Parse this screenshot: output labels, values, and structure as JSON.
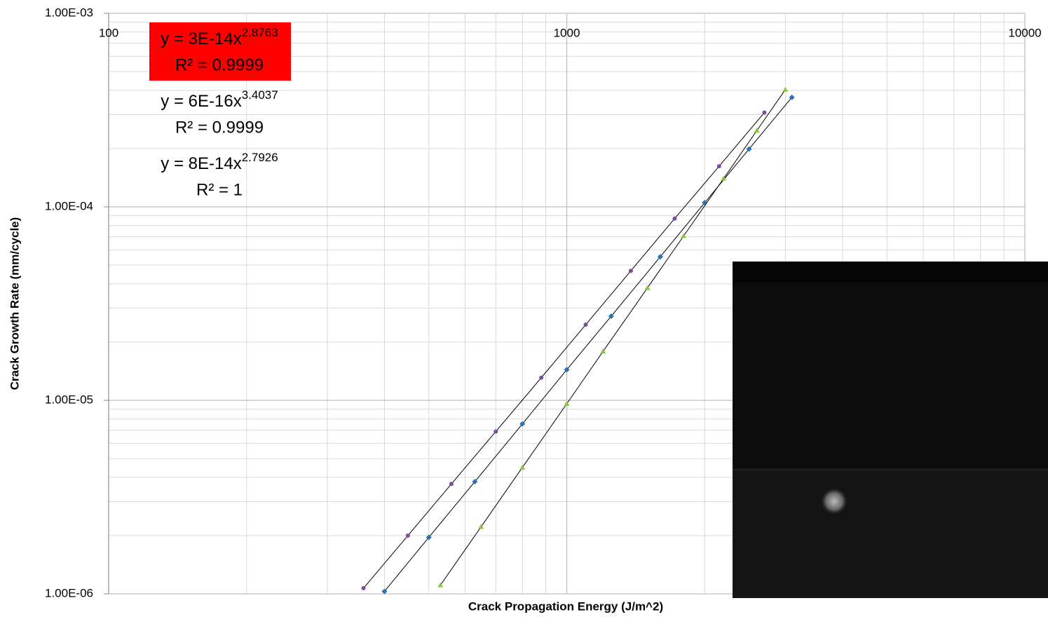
{
  "chart_data": {
    "type": "scatter",
    "xlabel": "Crack Propagation Energy (J/m^2)",
    "ylabel": "Crack Growth Rate (mm/cycle)",
    "xscale": "log",
    "yscale": "log",
    "xlim": [
      100,
      10000
    ],
    "ylim": [
      1e-06,
      0.001
    ],
    "xticks": [
      100,
      1000,
      10000
    ],
    "yticks": [
      {
        "value": 1e-06,
        "label": "1.00E-06"
      },
      {
        "value": 1e-05,
        "label": "1.00E-05"
      },
      {
        "value": 0.0001,
        "label": "1.00E-04"
      },
      {
        "value": 0.001,
        "label": "1.00E-03"
      }
    ],
    "grid": true,
    "x_minor_grid": [
      200,
      300,
      400,
      500,
      600,
      700,
      800,
      900,
      2000,
      3000,
      4000,
      5000,
      6000,
      7000,
      8000,
      9000
    ],
    "y_minor_grid": [
      2e-06,
      3e-06,
      4e-06,
      5e-06,
      6e-06,
      7e-06,
      8e-06,
      9e-06,
      2e-05,
      3e-05,
      4e-05,
      5e-05,
      6e-05,
      7e-05,
      8e-05,
      9e-05,
      0.0002,
      0.0003,
      0.0004,
      0.0005,
      0.0006,
      0.0007,
      0.0008,
      0.0009
    ],
    "trendline_color": "#000000",
    "series": [
      {
        "color": "#7a4f9a",
        "marker": "circle",
        "x": [
          360,
          450,
          560,
          700,
          880,
          1100,
          1380,
          1720,
          2150,
          2700
        ],
        "values": [
          1.07e-06,
          2e-06,
          3.7e-06,
          6.9e-06,
          1.31e-05,
          2.46e-05,
          4.67e-05,
          8.7e-05,
          0.000162,
          0.000307
        ]
      },
      {
        "color": "#2e6fb5",
        "marker": "diamond",
        "x": [
          400,
          500,
          630,
          800,
          1000,
          1250,
          1600,
          2000,
          2500,
          3100
        ],
        "values": [
          1.03e-06,
          1.96e-06,
          3.8e-06,
          7.55e-06,
          1.44e-05,
          2.72e-05,
          5.52e-05,
          0.000105,
          0.000199,
          0.000368
        ]
      },
      {
        "color": "#8cc63f",
        "marker": "triangle",
        "x": [
          530,
          650,
          800,
          1000,
          1200,
          1500,
          1800,
          2200,
          2600,
          3000
        ],
        "values": [
          1.11e-06,
          2.22e-06,
          4.5e-06,
          9.6e-06,
          1.79e-05,
          3.81e-05,
          7.08e-05,
          0.00014,
          0.000248,
          0.000403
        ]
      }
    ],
    "annotations": [
      {
        "text": "y = 3E-14x",
        "exponent": "2.8763",
        "r2": "R² = 0.9999",
        "background": "#ff0000"
      },
      {
        "text": "y = 6E-16x",
        "exponent": "3.4037",
        "r2": "R² = 0.9999"
      },
      {
        "text": "y = 8E-14x",
        "exponent": "2.7926",
        "r2": "R² = 1"
      }
    ]
  }
}
